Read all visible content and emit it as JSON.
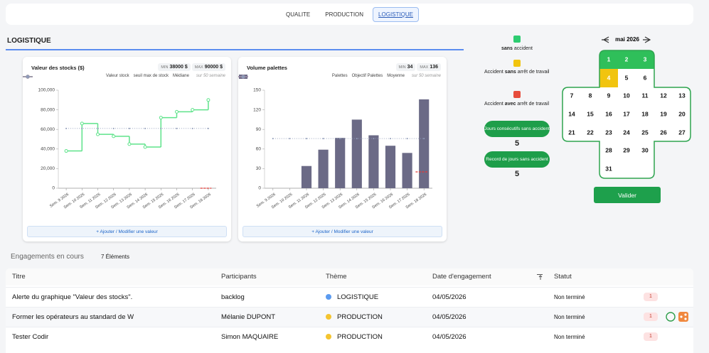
{
  "tabs": {
    "items": [
      "QUALITE",
      "PRODUCTION",
      "LOGISTIQUE"
    ],
    "active": 2
  },
  "section_title": "LOGISTIQUE",
  "charts": [
    {
      "type": "line",
      "title": "Valeur des stocks ($)",
      "stats": {
        "min_label": "MIN",
        "min": "38000 $",
        "max_label": "MAX",
        "max": "90000 $"
      },
      "note": "sur 50 semaine",
      "categories": [
        "Sem. 9 2026",
        "Sem. 10 2026",
        "Sem. 11 2026",
        "Sem. 12 2026",
        "Sem. 13 2026",
        "Sem. 14 2026",
        "Sem. 15 2026",
        "Sem. 16 2026",
        "Sem. 17 2026",
        "Sem. 18 2026"
      ],
      "series": [
        {
          "name": "Valeur stock",
          "color": "#5ee38a",
          "style": "step",
          "values": [
            38000,
            66000,
            55000,
            53000,
            45000,
            42000,
            72000,
            78000,
            80000,
            90000
          ]
        },
        {
          "name": "seuil max de stock",
          "color": "#e53935",
          "style": "dash",
          "values": [
            null,
            null,
            null,
            null,
            null,
            null,
            null,
            null,
            null,
            0
          ]
        },
        {
          "name": "Médiane",
          "color": "#8f9bb8",
          "style": "dotted",
          "values": [
            61000,
            61000,
            61000,
            61000,
            61000,
            61000,
            61000,
            61000,
            61000,
            61000
          ]
        }
      ],
      "ylim": [
        0,
        100000
      ],
      "yticks": [
        0,
        {
          "value": 20000,
          "label": "20,000"
        },
        {
          "value": 40000,
          "label": "40,000"
        },
        {
          "value": 60000,
          "label": "60,000"
        },
        {
          "value": 80000,
          "label": "80,000"
        },
        {
          "value": 100000,
          "label": "100,000"
        }
      ],
      "button": "+ Ajouter / Modifier une valeur"
    },
    {
      "type": "bar",
      "title": "Volume palettes",
      "stats": {
        "min_label": "MIN",
        "min": 34,
        "max_label": "MAX",
        "max": 136
      },
      "note": "sur 50 semaine",
      "categories": [
        "Sem. 9 2026",
        "Sem. 10 2026",
        "Sem. 11 2026",
        "Sem. 12 2026",
        "Sem. 13 2026",
        "Sem. 14 2026",
        "Sem. 15 2026",
        "Sem. 16 2026",
        "Sem. 17 2026",
        "Sem. 18 2026"
      ],
      "series": [
        {
          "name": "Palettes",
          "color": "#6b6a86",
          "style": "bar",
          "values": [
            null,
            null,
            34,
            59,
            77,
            105,
            81,
            65,
            54,
            136
          ]
        },
        {
          "name": "Objectif Palettes",
          "color": "#e53935",
          "style": "dash",
          "values": [
            null,
            null,
            null,
            null,
            null,
            null,
            null,
            null,
            null,
            25
          ]
        },
        {
          "name": "Moyenne",
          "color": "#8f9bb8",
          "style": "dotted",
          "values": [
            76,
            76,
            76,
            76,
            76,
            76,
            76,
            76,
            76,
            76
          ]
        }
      ],
      "ylim": [
        0,
        150
      ],
      "yticks": [
        0,
        30,
        60,
        90,
        120,
        150
      ],
      "button": "+ Ajouter / Modifier une valeur"
    }
  ],
  "safety": {
    "legend": [
      {
        "color": "#2ecc71",
        "bold": "sans",
        "after": " accident"
      },
      {
        "color": "#f1c40f",
        "before": "Accident ",
        "bold": "sans",
        "after": " arrêt de travail"
      },
      {
        "color": "#e74c3c",
        "before": "Accident ",
        "bold": "avec",
        "after": " arrêt de travail"
      }
    ],
    "counters": [
      {
        "label": "Jours consécutifs sans accident",
        "value": 5
      },
      {
        "label": "Record de jours sans accident",
        "value": 5
      }
    ]
  },
  "calendar": {
    "month": "mai 2026",
    "status_colors": {
      "ok": "#2fbf5a",
      "minor": "#f1c40f"
    },
    "days": [
      {
        "day": 1,
        "status": "ok"
      },
      {
        "day": 2,
        "status": "ok"
      },
      {
        "day": 3,
        "status": "ok"
      },
      {
        "day": 4,
        "status": "minor"
      },
      {
        "day": 5
      },
      {
        "day": 6
      },
      {
        "day": 7
      },
      {
        "day": 8
      },
      {
        "day": 9
      },
      {
        "day": 10
      },
      {
        "day": 11
      },
      {
        "day": 12
      },
      {
        "day": 13
      },
      {
        "day": 14
      },
      {
        "day": 15
      },
      {
        "day": 16
      },
      {
        "day": 17
      },
      {
        "day": 18
      },
      {
        "day": 19
      },
      {
        "day": 20
      },
      {
        "day": 21
      },
      {
        "day": 22
      },
      {
        "day": 23
      },
      {
        "day": 24
      },
      {
        "day": 25
      },
      {
        "day": 26
      },
      {
        "day": 27
      },
      {
        "day": 28
      },
      {
        "day": 29
      },
      {
        "day": 30
      },
      {
        "day": 31
      }
    ],
    "button": "Valider"
  },
  "table": {
    "heading": "Engagements en cours",
    "count": "7 Éléments",
    "columns": [
      "Titre",
      "Participants",
      "Thème",
      "Date d'engagement",
      "Statut"
    ],
    "rows": [
      {
        "title": "Alerte du graphique \"Valeur des stocks\".",
        "participants": "backlog",
        "theme": "LOGISTIQUE",
        "theme_color": "#5b9bf0",
        "date": "04/05/2026",
        "status": "Non terminé",
        "badge": 1
      },
      {
        "title": "Former les opérateurs au standard de W",
        "participants": "Mélanie DUPONT",
        "theme": "PRODUCTION",
        "theme_color": "#f4c430",
        "date": "04/05/2026",
        "status": "Non terminé",
        "badge": 1
      },
      {
        "title": "Tester Codir",
        "participants": "Simon MAQUAIRE",
        "theme": "PRODUCTION",
        "theme_color": "#f4c430",
        "date": "04/05/2026",
        "status": "Non terminé",
        "badge": 1
      }
    ]
  }
}
